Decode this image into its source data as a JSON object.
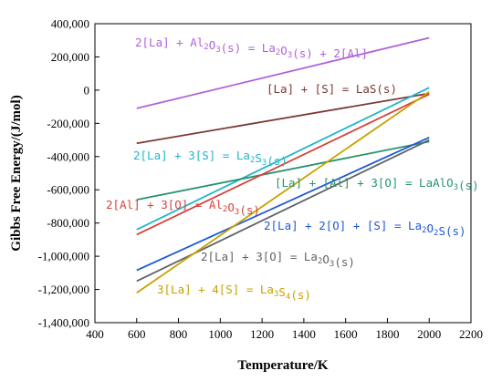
{
  "chart_data": {
    "type": "line",
    "title": "",
    "xlabel": "Temperature/K",
    "ylabel": "Gibbs Free Energy/(J/mol)",
    "xlim": [
      400,
      2200
    ],
    "ylim": [
      -1400000,
      400000
    ],
    "xticks": [
      400,
      600,
      800,
      1000,
      1200,
      1400,
      1600,
      1800,
      2000,
      2200
    ],
    "yticks": [
      400000,
      200000,
      0,
      -200000,
      -400000,
      -600000,
      -800000,
      -1000000,
      -1200000,
      -1400000
    ],
    "xtick_labels": [
      "400",
      "600",
      "800",
      "1000",
      "1200",
      "1400",
      "1600",
      "1800",
      "2000",
      "2200"
    ],
    "ytick_labels": [
      "400,000",
      "200,000",
      "0",
      "-200,000",
      "-400,000",
      "-600,000",
      "-800,000",
      "-1,000,000",
      "-1,200,000",
      "-1,400,000"
    ],
    "grid": false,
    "series": [
      {
        "color": "#b062d9",
        "x": [
          600,
          2000
        ],
        "y": [
          -110000,
          315000
        ],
        "label": [
          {
            "t": "2[La] + Al"
          },
          {
            "t": "2",
            "sub": true
          },
          {
            "t": "O"
          },
          {
            "t": "3",
            "sub": true
          },
          {
            "t": "(s) = La"
          },
          {
            "t": "2",
            "sub": true
          },
          {
            "t": "O"
          },
          {
            "t": "3",
            "sub": true
          },
          {
            "t": "(s) + 2[Al]"
          }
        ]
      },
      {
        "color": "#7a3a34",
        "x": [
          600,
          2000
        ],
        "y": [
          -320000,
          -20000
        ],
        "label": [
          {
            "t": "[La] + [S] = LaS(s)"
          }
        ]
      },
      {
        "color": "#22b5c9",
        "x": [
          600,
          2000
        ],
        "y": [
          -840000,
          15000
        ],
        "label": [
          {
            "t": "2[La] + 3[S] = La"
          },
          {
            "t": "2",
            "sub": true
          },
          {
            "t": "S"
          },
          {
            "t": "3",
            "sub": true
          },
          {
            "t": "(s)"
          }
        ]
      },
      {
        "color": "#25946a",
        "x": [
          600,
          2000
        ],
        "y": [
          -660000,
          -310000
        ],
        "label": [
          {
            "t": "[La] + [Al] + 3[O] = LaAlO"
          },
          {
            "t": "3",
            "sub": true
          },
          {
            "t": "(s)"
          }
        ]
      },
      {
        "color": "#d8423a",
        "x": [
          600,
          2000
        ],
        "y": [
          -870000,
          -25000
        ],
        "label": [
          {
            "t": "2[Al] + 3[O] = Al"
          },
          {
            "t": "2",
            "sub": true
          },
          {
            "t": "O"
          },
          {
            "t": "3",
            "sub": true
          },
          {
            "t": "(s)"
          }
        ]
      },
      {
        "color": "#1f57d6",
        "x": [
          600,
          2000
        ],
        "y": [
          -1085000,
          -285000
        ],
        "label": [
          {
            "t": "2[La] + 2[O] + [S] = La"
          },
          {
            "t": "2",
            "sub": true
          },
          {
            "t": "O"
          },
          {
            "t": "2",
            "sub": true
          },
          {
            "t": "S(s)"
          }
        ]
      },
      {
        "color": "#5f6368",
        "x": [
          600,
          2000
        ],
        "y": [
          -1150000,
          -300000
        ],
        "label": [
          {
            "t": "2[La] + 3[O] = La"
          },
          {
            "t": "2",
            "sub": true
          },
          {
            "t": "O"
          },
          {
            "t": "3",
            "sub": true
          },
          {
            "t": "(s)"
          }
        ]
      },
      {
        "color": "#c9a100",
        "x": [
          600,
          2000
        ],
        "y": [
          -1220000,
          -10000
        ],
        "label": [
          {
            "t": "3[La] + 4[S] = La"
          },
          {
            "t": "3",
            "sub": true
          },
          {
            "t": "S"
          },
          {
            "t": "4",
            "sub": true
          },
          {
            "t": "(s)"
          }
        ]
      }
    ]
  }
}
